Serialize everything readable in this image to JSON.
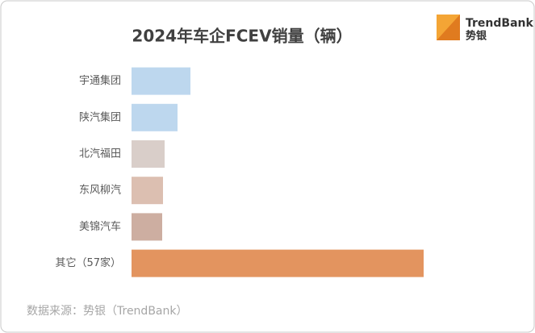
{
  "chart_data": {
    "type": "hbar",
    "title": "2024年车企FCEV销量（辆）",
    "categories": [
      "宇通集团",
      "陕汽集团",
      "北汽福田",
      "东风柳汽",
      "美锦汽车",
      "其它（57家）"
    ],
    "values": [
      730,
      570,
      410,
      390,
      380,
      3620
    ],
    "colors": [
      "#bdd7ee",
      "#bdd7ee",
      "#d9cec9",
      "#dcbfb1",
      "#cdaea1",
      "#e3945f"
    ],
    "source": "数据来源：势银（TrendBank）"
  },
  "logo": {
    "name": "TrendBank",
    "subtitle": "势银"
  }
}
